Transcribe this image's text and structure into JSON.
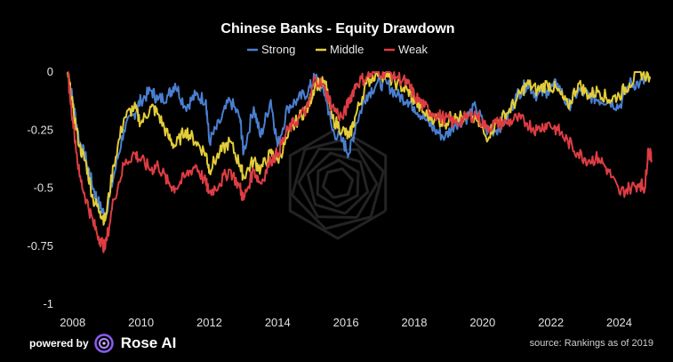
{
  "colors": {
    "Strong": "#4a7fd0",
    "Middle": "#e3cd38",
    "Weak": "#dd3d43",
    "background": "#000000"
  },
  "footer": {
    "powered_by": "powered by",
    "brand": "Rose AI",
    "source": "source: Rankings as of 2019"
  },
  "brand_icon": "rose-ai-logo-icon",
  "chart_data": {
    "type": "line",
    "title": "Chinese Banks - Equity Drawdown",
    "xlabel": "",
    "ylabel": "",
    "xlim": [
      2007.85,
      2024.95
    ],
    "ylim": [
      -1,
      0
    ],
    "x_ticks": [
      2008,
      2010,
      2012,
      2014,
      2016,
      2018,
      2020,
      2022,
      2024
    ],
    "y_ticks": [
      0,
      -0.25,
      -0.5,
      -0.75,
      -1
    ],
    "y_tick_labels": [
      "0",
      "-0.25",
      "-0.5",
      "-0.75",
      "-1"
    ],
    "grid": false,
    "legend_position": "top-center",
    "series": [
      {
        "name": "Strong",
        "x": [
          2007.85,
          2008.0,
          2008.2,
          2008.4,
          2008.6,
          2008.8,
          2008.95,
          2009.2,
          2009.5,
          2009.8,
          2010.0,
          2010.3,
          2010.5,
          2010.8,
          2011.0,
          2011.3,
          2011.6,
          2011.9,
          2012.0,
          2012.3,
          2012.6,
          2012.9,
          2013.0,
          2013.3,
          2013.5,
          2013.8,
          2014.0,
          2014.3,
          2014.6,
          2014.9,
          2015.1,
          2015.4,
          2015.6,
          2015.9,
          2016.1,
          2016.3,
          2016.6,
          2016.9,
          2017.2,
          2017.5,
          2017.8,
          2018.0,
          2018.3,
          2018.6,
          2018.9,
          2019.2,
          2019.5,
          2019.8,
          2020.1,
          2020.4,
          2020.7,
          2021.0,
          2021.3,
          2021.6,
          2021.9,
          2022.2,
          2022.5,
          2022.8,
          2023.1,
          2023.4,
          2023.7,
          2024.0,
          2024.3,
          2024.6,
          2024.9
        ],
        "y": [
          0,
          -0.12,
          -0.3,
          -0.38,
          -0.5,
          -0.58,
          -0.62,
          -0.45,
          -0.25,
          -0.18,
          -0.12,
          -0.08,
          -0.12,
          -0.1,
          -0.05,
          -0.15,
          -0.1,
          -0.12,
          -0.3,
          -0.22,
          -0.12,
          -0.2,
          -0.35,
          -0.15,
          -0.28,
          -0.12,
          -0.32,
          -0.15,
          -0.12,
          -0.08,
          -0.02,
          -0.1,
          -0.25,
          -0.3,
          -0.35,
          -0.22,
          -0.1,
          -0.05,
          -0.05,
          -0.1,
          -0.12,
          -0.15,
          -0.2,
          -0.25,
          -0.28,
          -0.22,
          -0.2,
          -0.15,
          -0.25,
          -0.25,
          -0.2,
          -0.1,
          -0.05,
          -0.1,
          -0.08,
          -0.05,
          -0.15,
          -0.08,
          -0.1,
          -0.12,
          -0.12,
          -0.15,
          -0.05,
          -0.05,
          -0.03
        ]
      },
      {
        "name": "Middle",
        "x": [
          2007.85,
          2008.0,
          2008.2,
          2008.4,
          2008.6,
          2008.8,
          2008.95,
          2009.2,
          2009.5,
          2009.8,
          2010.0,
          2010.3,
          2010.5,
          2010.8,
          2011.0,
          2011.3,
          2011.6,
          2011.9,
          2012.0,
          2012.3,
          2012.6,
          2012.9,
          2013.0,
          2013.3,
          2013.5,
          2013.8,
          2014.0,
          2014.3,
          2014.6,
          2014.9,
          2015.1,
          2015.4,
          2015.6,
          2015.9,
          2016.1,
          2016.3,
          2016.6,
          2016.9,
          2017.2,
          2017.5,
          2017.8,
          2018.0,
          2018.3,
          2018.6,
          2018.9,
          2019.2,
          2019.5,
          2019.8,
          2020.1,
          2020.4,
          2020.7,
          2021.0,
          2021.3,
          2021.6,
          2021.9,
          2022.2,
          2022.5,
          2022.8,
          2023.1,
          2023.4,
          2023.7,
          2024.0,
          2024.3,
          2024.6,
          2024.9
        ],
        "y": [
          0,
          -0.15,
          -0.32,
          -0.4,
          -0.55,
          -0.6,
          -0.64,
          -0.4,
          -0.2,
          -0.15,
          -0.22,
          -0.15,
          -0.18,
          -0.28,
          -0.32,
          -0.25,
          -0.3,
          -0.35,
          -0.42,
          -0.35,
          -0.3,
          -0.4,
          -0.45,
          -0.38,
          -0.42,
          -0.35,
          -0.38,
          -0.28,
          -0.2,
          -0.15,
          -0.05,
          -0.05,
          -0.2,
          -0.25,
          -0.28,
          -0.18,
          -0.05,
          0,
          -0.02,
          -0.05,
          -0.08,
          -0.12,
          -0.18,
          -0.2,
          -0.22,
          -0.18,
          -0.2,
          -0.2,
          -0.28,
          -0.22,
          -0.18,
          -0.12,
          -0.05,
          -0.08,
          -0.05,
          -0.08,
          -0.15,
          -0.05,
          -0.1,
          -0.08,
          -0.12,
          -0.1,
          -0.05,
          0,
          -0.02
        ]
      },
      {
        "name": "Weak",
        "x": [
          2007.85,
          2008.0,
          2008.2,
          2008.4,
          2008.6,
          2008.8,
          2008.95,
          2009.2,
          2009.5,
          2009.8,
          2010.0,
          2010.3,
          2010.5,
          2010.8,
          2011.0,
          2011.3,
          2011.6,
          2011.9,
          2012.0,
          2012.3,
          2012.6,
          2012.9,
          2013.0,
          2013.3,
          2013.5,
          2013.8,
          2014.0,
          2014.3,
          2014.6,
          2014.9,
          2015.1,
          2015.4,
          2015.6,
          2015.9,
          2016.1,
          2016.3,
          2016.6,
          2016.9,
          2017.2,
          2017.5,
          2017.8,
          2018.0,
          2018.3,
          2018.6,
          2018.9,
          2019.2,
          2019.5,
          2019.8,
          2020.1,
          2020.4,
          2020.7,
          2021.0,
          2021.3,
          2021.6,
          2021.9,
          2022.2,
          2022.5,
          2022.8,
          2023.1,
          2023.4,
          2023.7,
          2024.0,
          2024.3,
          2024.6,
          2024.75,
          2024.85,
          2024.95
        ],
        "y": [
          0,
          -0.2,
          -0.45,
          -0.55,
          -0.65,
          -0.72,
          -0.76,
          -0.55,
          -0.4,
          -0.35,
          -0.38,
          -0.42,
          -0.4,
          -0.48,
          -0.5,
          -0.45,
          -0.4,
          -0.48,
          -0.52,
          -0.48,
          -0.42,
          -0.5,
          -0.55,
          -0.42,
          -0.48,
          -0.38,
          -0.35,
          -0.25,
          -0.2,
          -0.15,
          -0.02,
          -0.08,
          -0.15,
          -0.2,
          -0.12,
          -0.05,
          -0.02,
          0,
          0,
          -0.02,
          -0.05,
          -0.1,
          -0.15,
          -0.18,
          -0.2,
          -0.22,
          -0.2,
          -0.18,
          -0.24,
          -0.22,
          -0.22,
          -0.2,
          -0.22,
          -0.25,
          -0.22,
          -0.25,
          -0.3,
          -0.35,
          -0.38,
          -0.37,
          -0.43,
          -0.52,
          -0.5,
          -0.48,
          -0.5,
          -0.33,
          -0.38
        ]
      }
    ]
  }
}
